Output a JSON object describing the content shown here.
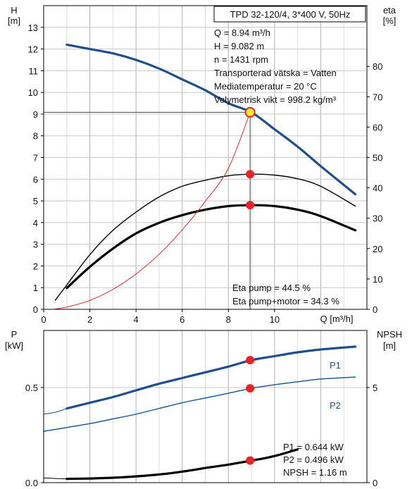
{
  "chart_data": [
    {
      "type": "line",
      "title": "TPD 32-120/4, 3*400 V, 50Hz",
      "xlabel": "Q [m³/h]",
      "ylabel": [
        "H",
        "[m]"
      ],
      "y2label": [
        "eta",
        "[%]"
      ],
      "xlim": [
        0,
        14
      ],
      "ylim": [
        0,
        14
      ],
      "y2lim": [
        0,
        100
      ],
      "xticks": [
        0,
        2,
        4,
        6,
        8,
        10
      ],
      "yticks": [
        0,
        1,
        2,
        3,
        4,
        5,
        6,
        7,
        8,
        9,
        10,
        11,
        12,
        13
      ],
      "y2ticks": [
        0,
        10,
        20,
        30,
        40,
        50,
        60,
        70,
        80
      ],
      "grid": true,
      "colors": {
        "head": "#1f4e8c",
        "eta": "#000000",
        "system": "#e03030",
        "marker": "#ee2222",
        "marker_yellow": "#ffee33"
      },
      "series": [
        {
          "key": "head",
          "axis": "H",
          "x": [
            1,
            2,
            3,
            4,
            5,
            6,
            7,
            8,
            9,
            10,
            11,
            12,
            13.5
          ],
          "y": [
            12.2,
            12.0,
            11.8,
            11.5,
            11.1,
            10.6,
            10.1,
            9.5,
            9.08,
            8.3,
            7.5,
            6.6,
            5.3
          ]
        },
        {
          "key": "eta_pump",
          "axis": "eta",
          "x": [
            0.5,
            1,
            2,
            3,
            4,
            5,
            6,
            7,
            8,
            9,
            10,
            11,
            12,
            13.5
          ],
          "y": [
            3,
            8,
            18,
            26,
            32,
            37,
            40.5,
            42.5,
            44,
            44.5,
            44.2,
            43,
            40.5,
            34
          ]
        },
        {
          "key": "eta_pump_motor",
          "axis": "eta",
          "x": [
            1,
            2,
            3,
            4,
            5,
            6,
            7,
            8,
            9,
            10,
            11,
            12,
            13.5
          ],
          "y": [
            7,
            14,
            20,
            25,
            28.5,
            31,
            32.8,
            34,
            34.3,
            34,
            32.8,
            30.7,
            26
          ]
        },
        {
          "key": "system",
          "axis": "H",
          "x": [
            0.5,
            1,
            2,
            3,
            4,
            5,
            6,
            7,
            8,
            8.94
          ],
          "y": [
            0.02,
            0.1,
            0.41,
            0.92,
            1.63,
            2.54,
            3.66,
            4.98,
            6.5,
            9.08
          ]
        }
      ],
      "duty_point": {
        "Q": 8.94,
        "H": 9.082,
        "eta_pump": 44.5,
        "eta_pump_motor": 34.3
      },
      "info": [
        "Q = 8.94 m³/h",
        "H = 9.082 m",
        "n = 1431 rpm",
        "Transporterad vätska = Vatten",
        "Mediatemperatur = 20 °C",
        "Volymetrisk vikt = 998.2 kg/m³"
      ],
      "eta_info": [
        "Eta pump = 44.5 %",
        "Eta pump+motor = 34.3 %"
      ]
    },
    {
      "type": "line",
      "ylabel": [
        "P",
        "[kW]"
      ],
      "y2label": [
        "NPSH",
        "[m]"
      ],
      "xlim": [
        0,
        14
      ],
      "ylim": [
        0,
        0.8
      ],
      "y2lim": [
        0,
        8
      ],
      "yticks": [
        0.0,
        0.5
      ],
      "ytick_labels": [
        "0.0",
        "0.5"
      ],
      "y2ticks": [
        0,
        5
      ],
      "grid": true,
      "colors": {
        "p1": "#1f4e8c",
        "p2": "#1f5e96",
        "npsh": "#000000"
      },
      "series": [
        {
          "key": "P1",
          "name": "P1",
          "axis": "P",
          "x": [
            1,
            2,
            3,
            4,
            5,
            6,
            7,
            8,
            9,
            10,
            11,
            12,
            13.5
          ],
          "y": [
            0.39,
            0.42,
            0.45,
            0.485,
            0.52,
            0.55,
            0.58,
            0.61,
            0.644,
            0.665,
            0.685,
            0.7,
            0.715
          ]
        },
        {
          "key": "P1_ext",
          "axis": "P",
          "x": [
            0,
            0.5,
            1
          ],
          "y": [
            0.36,
            0.37,
            0.39
          ]
        },
        {
          "key": "P2",
          "name": "P2",
          "axis": "P",
          "x": [
            0,
            1,
            2,
            3,
            4,
            5,
            6,
            7,
            8,
            9,
            10,
            11,
            12,
            13.5
          ],
          "y": [
            0.27,
            0.29,
            0.31,
            0.335,
            0.36,
            0.39,
            0.42,
            0.445,
            0.47,
            0.496,
            0.515,
            0.53,
            0.545,
            0.555
          ]
        },
        {
          "key": "NPSH",
          "axis": "NPSH",
          "x": [
            1,
            2,
            3,
            4,
            5,
            6,
            7,
            8,
            9,
            10,
            11
          ],
          "y": [
            0.2,
            0.22,
            0.26,
            0.33,
            0.43,
            0.58,
            0.77,
            0.95,
            1.16,
            1.4,
            1.75
          ]
        },
        {
          "key": "NPSH_ext",
          "axis": "NPSH",
          "x": [
            0,
            0.5,
            1
          ],
          "y": [
            0.25,
            0.22,
            0.2
          ]
        }
      ],
      "duty_point": {
        "P1": 0.644,
        "P2": 0.496,
        "NPSH": 1.16
      },
      "info": [
        "P1 = 0.644 kW",
        "P2 = 0.496 kW",
        "NPSH = 1.16 m"
      ]
    }
  ]
}
